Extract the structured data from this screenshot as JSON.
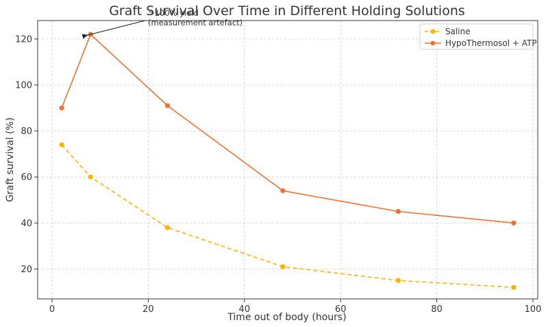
{
  "chart_data": {
    "type": "line",
    "title": "Graft Survival Over Time in Different Holding Solutions",
    "xlabel": "Time out of body (hours)",
    "ylabel": "Graft survival (%)",
    "xlim": [
      -3,
      101
    ],
    "ylim": [
      7,
      128
    ],
    "xticks": [
      0,
      20,
      40,
      60,
      80,
      100
    ],
    "yticks": [
      20,
      40,
      60,
      80,
      100,
      120
    ],
    "grid": true,
    "legend_position": "top-right",
    "series": [
      {
        "name": "Saline",
        "color": "#ffb300",
        "style": "dashed",
        "x": [
          2,
          8,
          24,
          48,
          72,
          96
        ],
        "y": [
          74,
          60,
          38,
          21,
          15,
          12
        ]
      },
      {
        "name": "HypoThermosol + ATP",
        "color": "#f07030",
        "style": "solid",
        "x": [
          2,
          8,
          24,
          48,
          72,
          96
        ],
        "y": [
          90,
          122,
          91,
          54,
          45,
          40
        ]
      }
    ],
    "annotation": {
      "lines": [
        ">100% yield",
        "(measurement artefact)"
      ],
      "target_x": 8,
      "target_y": 122
    }
  }
}
